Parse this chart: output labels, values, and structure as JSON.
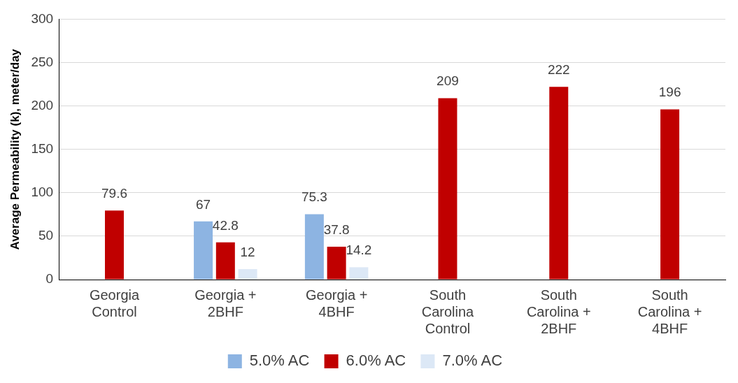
{
  "chart_data": {
    "type": "bar",
    "ylabel": "Average Permeability (k), meter/day",
    "categories": [
      "Georgia Control",
      "Georgia + 2BHF",
      "Georgia + 4BHF",
      "South Carolina Control",
      "South Carolina + 2BHF",
      "South Carolina + 4BHF"
    ],
    "series": [
      {
        "name": "5.0% AC",
        "color": "#8db4e2",
        "values": [
          null,
          67,
          75.3,
          null,
          null,
          null
        ]
      },
      {
        "name": "6.0% AC",
        "color": "#c00000",
        "values": [
          79.6,
          42.8,
          37.8,
          209,
          222,
          196
        ]
      },
      {
        "name": "7.0% AC",
        "color": "#dce8f6",
        "values": [
          null,
          12,
          14.2,
          null,
          null,
          null
        ]
      }
    ],
    "ylim": [
      0,
      300
    ],
    "yticks": [
      0,
      50,
      100,
      150,
      200,
      250,
      300
    ],
    "grid": "y",
    "legend": "bottom",
    "data_labels": true
  }
}
